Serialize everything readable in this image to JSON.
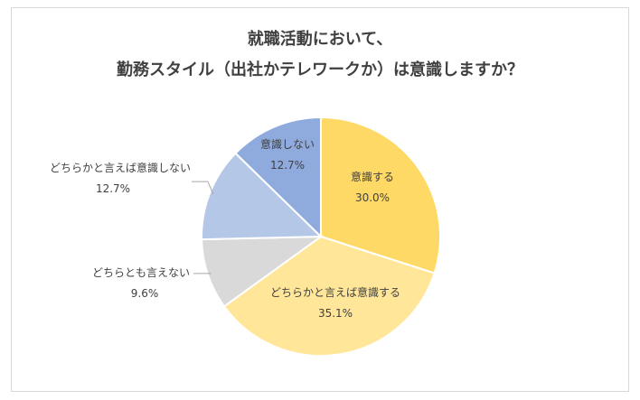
{
  "chart_data": {
    "type": "pie",
    "title_lines": [
      "就職活動において、",
      "勤務スタイル（出社かテレワークか）は意識しますか？"
    ],
    "slices": [
      {
        "label": "意識する",
        "value": 30.0,
        "value_label": "30.0%",
        "color": "#FFD966"
      },
      {
        "label": "どちらかと言えば意識する",
        "value": 35.1,
        "value_label": "35.1%",
        "color": "#FFE699"
      },
      {
        "label": "どちらとも言えない",
        "value": 9.6,
        "value_label": "9.6%",
        "color": "#D9D9D9"
      },
      {
        "label": "どちらかと言えば意識しない",
        "value": 12.7,
        "value_label": "12.7%",
        "color": "#B4C7E7"
      },
      {
        "label": "意識しない",
        "value": 12.7,
        "value_label": "12.7%",
        "color": "#8FAADC"
      }
    ],
    "start_direction": "top-clockwise",
    "legend": "none"
  }
}
